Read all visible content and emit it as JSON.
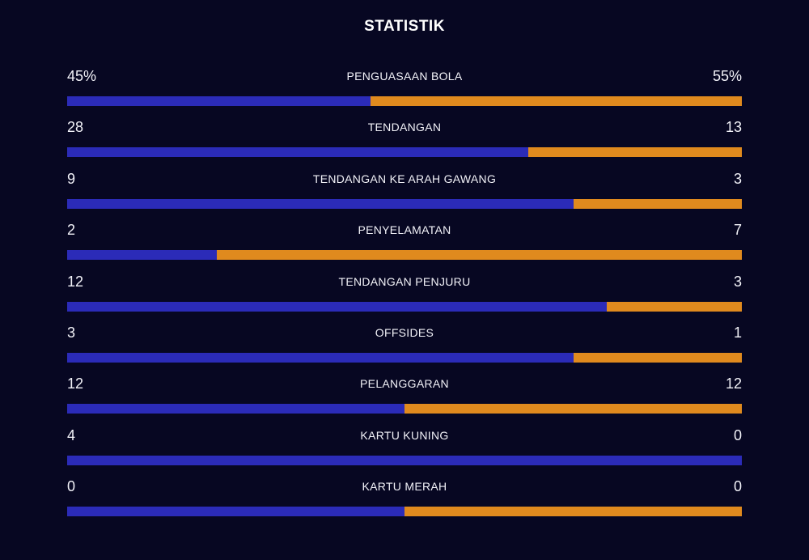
{
  "title": "STATISTIK",
  "colors": {
    "background": "#070722",
    "home": "#2b2bb8",
    "away": "#e08a1e"
  },
  "stats": [
    {
      "label": "PENGUASAAN BOLA",
      "home": "45%",
      "away": "55%",
      "home_share": 0.45
    },
    {
      "label": "TENDANGAN",
      "home": "28",
      "away": "13",
      "home_share": 0.683
    },
    {
      "label": "TENDANGAN KE ARAH GAWANG",
      "home": "9",
      "away": "3",
      "home_share": 0.75
    },
    {
      "label": "PENYELAMATAN",
      "home": "2",
      "away": "7",
      "home_share": 0.222
    },
    {
      "label": "TENDANGAN PENJURU",
      "home": "12",
      "away": "3",
      "home_share": 0.8
    },
    {
      "label": "OFFSIDES",
      "home": "3",
      "away": "1",
      "home_share": 0.75
    },
    {
      "label": "PELANGGARAN",
      "home": "12",
      "away": "12",
      "home_share": 0.5
    },
    {
      "label": "KARTU KUNING",
      "home": "4",
      "away": "0",
      "home_share": 1.0
    },
    {
      "label": "KARTU MERAH",
      "home": "0",
      "away": "0",
      "home_share": 0.5
    }
  ]
}
